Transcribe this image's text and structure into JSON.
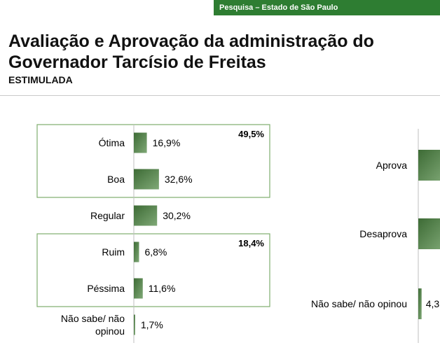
{
  "header": {
    "banner_text": "Pesquisa – Estado de São Paulo",
    "title_line1": "Avaliação e Aprovação da administração do",
    "title_line2": "Governador Tarcísio de Freitas",
    "subtitle": "ESTIMULADA"
  },
  "colors": {
    "banner": "#2e7d32",
    "bar_dark": "#3d6b35",
    "bar_light": "#7fa876",
    "group_border": "#7fae6e"
  },
  "chart_data": [
    {
      "type": "bar",
      "orientation": "horizontal",
      "categories": [
        "Ótima",
        "Boa",
        "Regular",
        "Ruim",
        "Péssima",
        "Não sabe/ não opinou"
      ],
      "values": [
        16.9,
        32.6,
        30.2,
        6.8,
        11.6,
        1.7
      ],
      "value_labels": [
        "16,9%",
        "32,6%",
        "30,2%",
        "6,8%",
        "11,6%",
        "1,7%"
      ],
      "groups": [
        {
          "members": [
            "Ótima",
            "Boa"
          ],
          "total_label": "49,5%"
        },
        {
          "members": [
            "Ruim",
            "Péssima"
          ],
          "total_label": "18,4%"
        }
      ],
      "grid": false,
      "legend": "none"
    },
    {
      "type": "bar",
      "orientation": "horizontal",
      "categories": [
        "Aprova",
        "Desaprova",
        "Não sabe/ não opinou"
      ],
      "value_labels": [
        "",
        "",
        "4,3"
      ],
      "values": [
        null,
        null,
        4.3
      ],
      "note": "cropped at right edge",
      "grid": false,
      "legend": "none"
    }
  ]
}
